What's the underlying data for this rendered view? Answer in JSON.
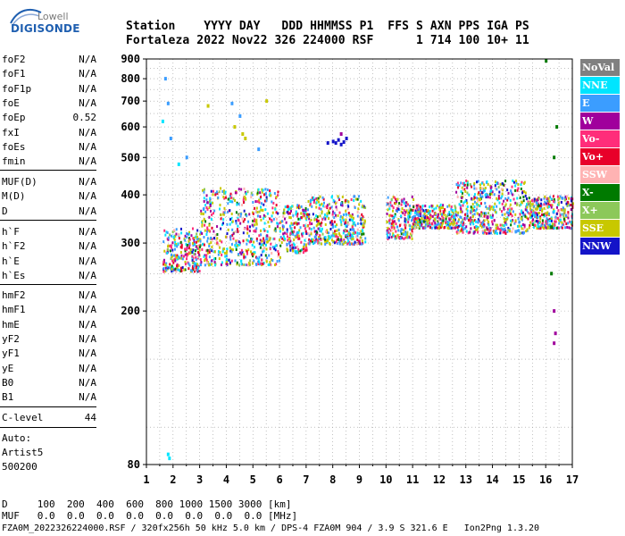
{
  "logo": {
    "line1": "Lowell",
    "line2": "DIGISONDE"
  },
  "header": {
    "line1": "Station    YYYY DAY   DDD HHMMSS P1  FFS S AXN PPS IGA PS",
    "line2": "Fortaleza 2022 Nov22 326 224000 RSF      1 714 100 10+ 11"
  },
  "params": {
    "group1": [
      {
        "name": "foF2",
        "value": "N/A"
      },
      {
        "name": "foF1",
        "value": "N/A"
      },
      {
        "name": "foF1p",
        "value": "N/A"
      },
      {
        "name": "foE",
        "value": "N/A"
      },
      {
        "name": "foEp",
        "value": "0.52"
      },
      {
        "name": "fxI",
        "value": "N/A"
      },
      {
        "name": "foEs",
        "value": "N/A"
      },
      {
        "name": "fmin",
        "value": "N/A"
      }
    ],
    "group2": [
      {
        "name": "MUF(D)",
        "value": "N/A"
      },
      {
        "name": "M(D)",
        "value": "N/A"
      },
      {
        "name": "D",
        "value": "N/A"
      }
    ],
    "group3": [
      {
        "name": "h`F",
        "value": "N/A"
      },
      {
        "name": "h`F2",
        "value": "N/A"
      },
      {
        "name": "h`E",
        "value": "N/A"
      },
      {
        "name": "h`Es",
        "value": "N/A"
      }
    ],
    "group4": [
      {
        "name": "hmF2",
        "value": "N/A"
      },
      {
        "name": "hmF1",
        "value": "N/A"
      },
      {
        "name": "hmE",
        "value": "N/A"
      },
      {
        "name": "yF2",
        "value": "N/A"
      },
      {
        "name": "yF1",
        "value": "N/A"
      },
      {
        "name": "yE",
        "value": "N/A"
      },
      {
        "name": "B0",
        "value": "N/A"
      },
      {
        "name": "B1",
        "value": "N/A"
      }
    ],
    "clevel": {
      "name": "C-level",
      "value": "44"
    }
  },
  "scaling": {
    "line1": "Auto:",
    "line2": "Artist5",
    "line3": "500200"
  },
  "footer": {
    "d_row": "D     100  200  400  600  800 1000 1500 3000 [km]",
    "muf_row": "MUF   0.0  0.0  0.0  0.0  0.0  0.0  0.0  0.0 [MHz]",
    "info": "FZA0M_2022326224000.RSF / 320fx256h 50 kHz 5.0 km / DPS-4 FZA0M 904 / 3.9 S 321.6 E   Ion2Png 1.3.20"
  },
  "legend": [
    {
      "label": "NoVal",
      "bg": "#808080",
      "fg": "#ffffff"
    },
    {
      "label": "NNE",
      "bg": "#00e5ff",
      "fg": "#ffffff"
    },
    {
      "label": "E",
      "bg": "#3b9dff",
      "fg": "#ffffff"
    },
    {
      "label": "W",
      "bg": "#a0009c",
      "fg": "#ffffff"
    },
    {
      "label": "Vo-",
      "bg": "#ff2d7a",
      "fg": "#ffffff"
    },
    {
      "label": "Vo+",
      "bg": "#e8002a",
      "fg": "#ffffff"
    },
    {
      "label": "SSW",
      "bg": "#ffb3b3",
      "fg": "#ffffff"
    },
    {
      "label": "X-",
      "bg": "#007a00",
      "fg": "#ffffff"
    },
    {
      "label": "X+",
      "bg": "#8cc85a",
      "fg": "#ffffff"
    },
    {
      "label": "SSE",
      "bg": "#c8c800",
      "fg": "#ffffff"
    },
    {
      "label": "NNW",
      "bg": "#1414c8",
      "fg": "#ffffff"
    }
  ],
  "chart_data": {
    "type": "scatter",
    "title": "",
    "xlabel": "",
    "ylabel": "",
    "xlim": [
      1,
      17
    ],
    "ylim": [
      80,
      900
    ],
    "y_scale": "log",
    "grid": true,
    "x_ticks": [
      "1",
      "2",
      "3",
      "4",
      "5",
      "6",
      "7",
      "8",
      "9",
      "10",
      "11",
      "12",
      "13",
      "14",
      "15",
      "16",
      "17"
    ],
    "y_ticks": [
      "80",
      "200",
      "300",
      "400",
      "500",
      "600",
      "700",
      "800",
      "900"
    ],
    "series": [
      {
        "name": "E",
        "points": [
          [
            1.7,
            800
          ],
          [
            1.8,
            690
          ],
          [
            1.9,
            560
          ],
          [
            2.5,
            500
          ],
          [
            4.2,
            690
          ],
          [
            5.2,
            525
          ],
          [
            4.5,
            640
          ]
        ]
      },
      {
        "name": "NNW",
        "points": [
          [
            7.8,
            545
          ],
          [
            8.0,
            550
          ],
          [
            8.2,
            555
          ],
          [
            8.3,
            540
          ],
          [
            8.5,
            560
          ],
          [
            8.4,
            548
          ],
          [
            8.1,
            545
          ]
        ]
      },
      {
        "name": "SSE",
        "points": [
          [
            4.3,
            600
          ],
          [
            4.7,
            560
          ],
          [
            5.5,
            700
          ],
          [
            3.3,
            680
          ],
          [
            4.6,
            575
          ]
        ]
      },
      {
        "name": "X-",
        "points": [
          [
            16.0,
            890
          ],
          [
            16.3,
            500
          ],
          [
            16.2,
            330
          ],
          [
            16.4,
            600
          ],
          [
            16.2,
            250
          ]
        ]
      },
      {
        "name": "NNE",
        "points": [
          [
            1.8,
            85
          ],
          [
            1.85,
            83
          ],
          [
            2.2,
            480
          ],
          [
            1.6,
            620
          ]
        ]
      },
      {
        "name": "W",
        "points": [
          [
            16.3,
            200
          ],
          [
            16.35,
            175
          ],
          [
            16.3,
            165
          ],
          [
            8.3,
            575
          ],
          [
            13.8,
            350
          ]
        ]
      }
    ]
  }
}
